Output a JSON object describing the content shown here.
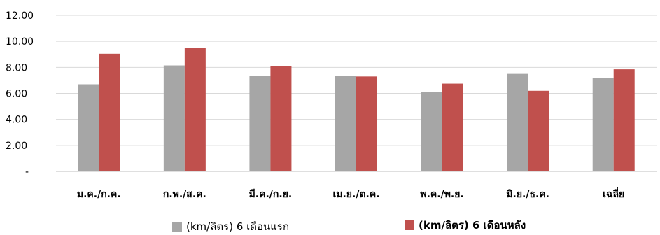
{
  "chart_data": {
    "type": "bar",
    "categories": [
      "ม.ค./ก.ค.",
      "ก.พ./ส.ค.",
      "มี.ค./ก.ย.",
      "เม.ย./ต.ค.",
      "พ.ค./พ.ย.",
      "มิ.ย./ธ.ค.",
      "เฉลี่ย"
    ],
    "series": [
      {
        "name": "(km/ลิตร) 6 เดือนแรก",
        "color": "#a6a6a6",
        "values": [
          6.7,
          8.15,
          7.35,
          7.35,
          6.1,
          7.5,
          7.2
        ]
      },
      {
        "name": "(km/ลิตร)  6 เดือนหลัง",
        "color": "#c0504d",
        "values": [
          9.05,
          9.5,
          8.1,
          7.3,
          6.75,
          6.2,
          7.85
        ]
      }
    ],
    "yticks": [
      {
        "value": 0,
        "label": "-"
      },
      {
        "value": 2,
        "label": "2.00"
      },
      {
        "value": 4,
        "label": "4.00"
      },
      {
        "value": 6,
        "label": "6.00"
      },
      {
        "value": 8,
        "label": "8.00"
      },
      {
        "value": 10,
        "label": "10.00"
      },
      {
        "value": 12,
        "label": "12.00"
      }
    ],
    "ylim": [
      0,
      12
    ],
    "grid": true,
    "legend_position": "bottom"
  }
}
